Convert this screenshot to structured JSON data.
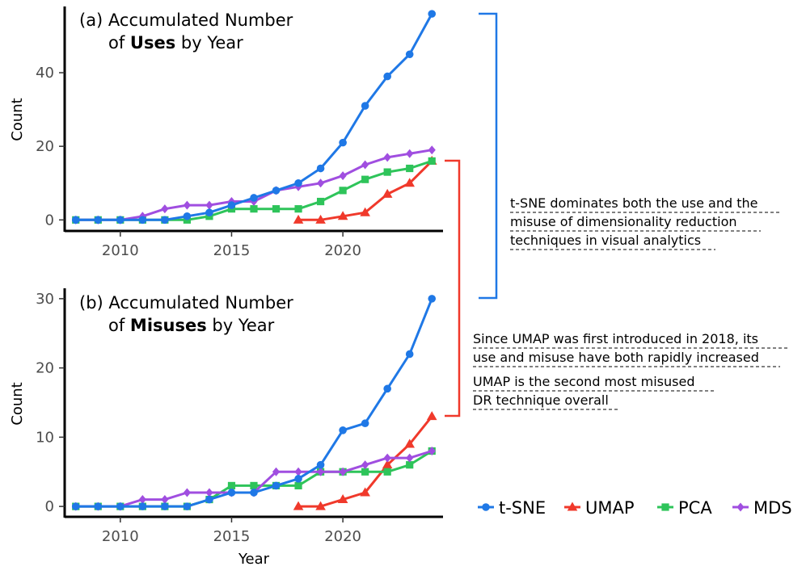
{
  "colors": {
    "t-SNE": "#1f78e6",
    "UMAP": "#f0392b",
    "PCA": "#2ec45a",
    "MDS": "#a04ee0"
  },
  "chart_data": [
    {
      "type": "line",
      "title": "(a) Accumulated Number of Uses by Year",
      "title_parts": {
        "line1": "(a) Accumulated Number",
        "line2_pre": "of ",
        "line2_bold": "Uses",
        "line2_post": " by Year"
      },
      "xlabel": "",
      "ylabel": "Count",
      "xlim": [
        2007.5,
        2024.5
      ],
      "ylim": [
        -3,
        58
      ],
      "xticks": [
        2010,
        2015,
        2020
      ],
      "yticks": [
        0,
        20,
        40
      ],
      "series": [
        {
          "name": "t-SNE",
          "marker": "circle",
          "x": [
            2008,
            2009,
            2010,
            2011,
            2012,
            2013,
            2014,
            2015,
            2016,
            2017,
            2018,
            2019,
            2020,
            2021,
            2022,
            2023,
            2024
          ],
          "values": [
            0,
            0,
            0,
            0,
            0,
            1,
            2,
            4,
            6,
            8,
            10,
            14,
            21,
            31,
            39,
            45,
            56
          ]
        },
        {
          "name": "UMAP",
          "marker": "triangle",
          "x": [
            2018,
            2019,
            2020,
            2021,
            2022,
            2023,
            2024
          ],
          "values": [
            0,
            0,
            1,
            2,
            7,
            10,
            16
          ]
        },
        {
          "name": "PCA",
          "marker": "square",
          "x": [
            2008,
            2009,
            2010,
            2011,
            2012,
            2013,
            2014,
            2015,
            2016,
            2017,
            2018,
            2019,
            2020,
            2021,
            2022,
            2023,
            2024
          ],
          "values": [
            0,
            0,
            0,
            0,
            0,
            0,
            1,
            3,
            3,
            3,
            3,
            5,
            8,
            11,
            13,
            14,
            16
          ]
        },
        {
          "name": "MDS",
          "marker": "diamond",
          "x": [
            2008,
            2009,
            2010,
            2011,
            2012,
            2013,
            2014,
            2015,
            2016,
            2017,
            2018,
            2019,
            2020,
            2021,
            2022,
            2023,
            2024
          ],
          "values": [
            0,
            0,
            0,
            1,
            3,
            4,
            4,
            5,
            5,
            8,
            9,
            10,
            12,
            15,
            17,
            18,
            19
          ]
        }
      ]
    },
    {
      "type": "line",
      "title": "(b) Accumulated Number of Misuses by Year",
      "title_parts": {
        "line1": "(b) Accumulated Number",
        "line2_pre": "of ",
        "line2_bold": "Misuses",
        "line2_post": " by Year"
      },
      "xlabel": "Year",
      "ylabel": "Count",
      "xlim": [
        2007.5,
        2024.5
      ],
      "ylim": [
        -1.5,
        31.5
      ],
      "xticks": [
        2010,
        2015,
        2020
      ],
      "yticks": [
        0,
        10,
        20,
        30
      ],
      "series": [
        {
          "name": "t-SNE",
          "marker": "circle",
          "x": [
            2008,
            2009,
            2010,
            2011,
            2012,
            2013,
            2014,
            2015,
            2016,
            2017,
            2018,
            2019,
            2020,
            2021,
            2022,
            2023,
            2024
          ],
          "values": [
            0,
            0,
            0,
            0,
            0,
            0,
            1,
            2,
            2,
            3,
            4,
            6,
            11,
            12,
            17,
            22,
            30
          ]
        },
        {
          "name": "UMAP",
          "marker": "triangle",
          "x": [
            2018,
            2019,
            2020,
            2021,
            2022,
            2023,
            2024
          ],
          "values": [
            0,
            0,
            1,
            2,
            6,
            9,
            13
          ]
        },
        {
          "name": "PCA",
          "marker": "square",
          "x": [
            2008,
            2009,
            2010,
            2011,
            2012,
            2013,
            2014,
            2015,
            2016,
            2017,
            2018,
            2019,
            2020,
            2021,
            2022,
            2023,
            2024
          ],
          "values": [
            0,
            0,
            0,
            0,
            0,
            0,
            1,
            3,
            3,
            3,
            3,
            5,
            5,
            5,
            5,
            6,
            8
          ]
        },
        {
          "name": "MDS",
          "marker": "diamond",
          "x": [
            2008,
            2009,
            2010,
            2011,
            2012,
            2013,
            2014,
            2015,
            2016,
            2017,
            2018,
            2019,
            2020,
            2021,
            2022,
            2023,
            2024
          ],
          "values": [
            0,
            0,
            0,
            1,
            1,
            2,
            2,
            2,
            2,
            5,
            5,
            5,
            5,
            6,
            7,
            7,
            8
          ]
        }
      ]
    }
  ],
  "annotations": {
    "tsne_note": [
      "t-SNE dominates both the use and the",
      "misuse of dimensionality reduction",
      "techniques in visual analytics"
    ],
    "umap_note1": [
      "Since UMAP was first introduced in 2018, its",
      "use and misuse have both rapidly increased"
    ],
    "umap_note2": [
      "UMAP is the second most misused",
      "DR technique overall"
    ]
  },
  "legend": [
    "t-SNE",
    "UMAP",
    "PCA",
    "MDS"
  ]
}
